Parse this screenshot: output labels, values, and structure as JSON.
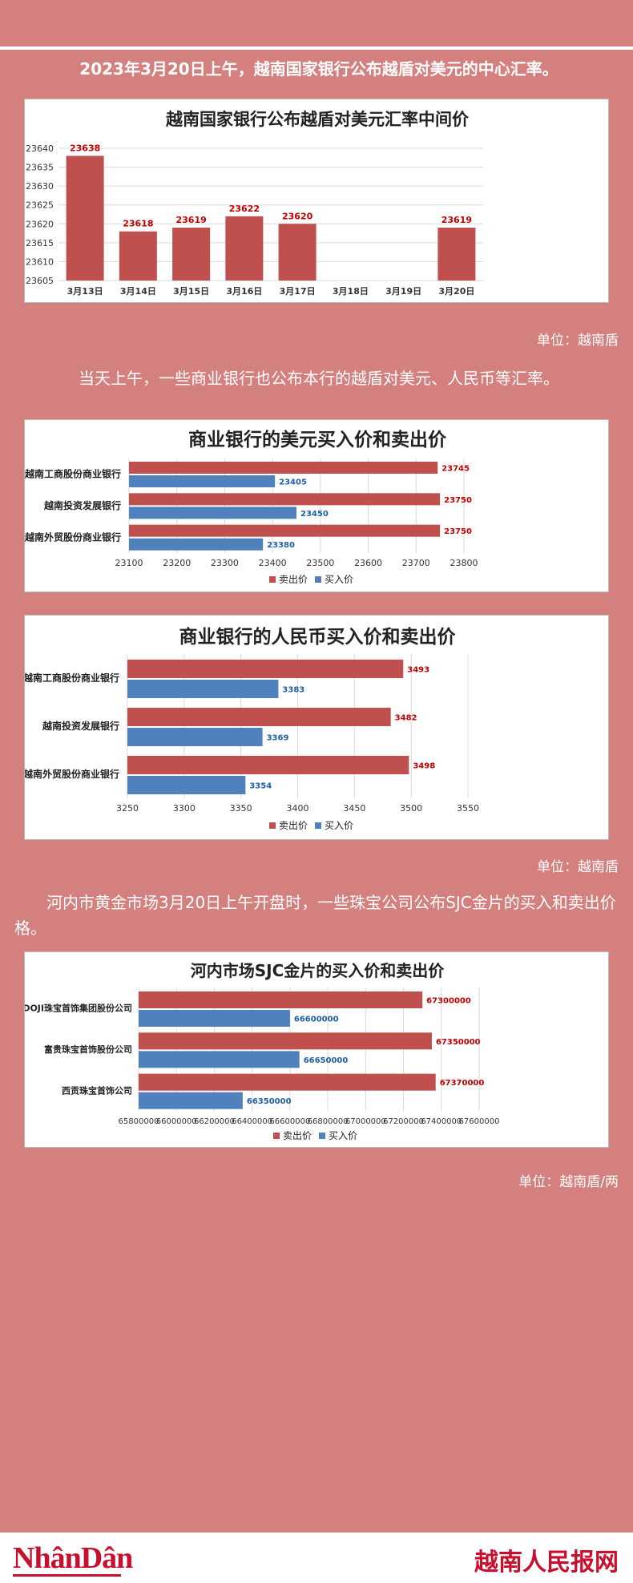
{
  "intro1": "2023年3月20日上午，越南国家银行公布越盾对美元的中心汇率。",
  "unit1": "单位：越南盾",
  "intro2": "当天上午，一些商业银行也公布本行的越盾对美元、人民币等汇率。",
  "unit2": "单位：越南盾",
  "intro3": "河内市黄金市场3月20日上午开盘时，一些珠宝公司公布SJC金片的买入和卖出价格。",
  "unit3": "单位：越南盾/两",
  "footer": {
    "logo": "NhânDân",
    "site": "越南人民报网"
  },
  "colors": {
    "sell": "#c0504d",
    "buy": "#4f81bd",
    "bg": "#d4807f"
  },
  "chart_data": [
    {
      "type": "bar",
      "title": "越南国家银行公布越盾对美元汇率中间价",
      "categories": [
        "3月13日",
        "3月14日",
        "3月15日",
        "3月16日",
        "3月17日",
        "3月18日",
        "3月19日",
        "3月20日"
      ],
      "values": [
        23638,
        23618,
        23619,
        23622,
        23620,
        null,
        null,
        23619
      ],
      "ylim": [
        23605,
        23640
      ],
      "yticks": [
        23605,
        23610,
        23615,
        23620,
        23625,
        23630,
        23635,
        23640
      ],
      "grid": true
    },
    {
      "type": "bar",
      "orientation": "horizontal",
      "title": "商业银行的美元买入价和卖出价",
      "categories": [
        "越南工商股份商业银行",
        "越南投资发展银行",
        "越南外贸股份商业银行"
      ],
      "series": [
        {
          "name": "卖出价",
          "values": [
            23745,
            23750,
            23750
          ]
        },
        {
          "name": "买入价",
          "values": [
            23405,
            23450,
            23380
          ]
        }
      ],
      "xlim": [
        23100,
        23800
      ],
      "xticks": [
        23100,
        23200,
        23300,
        23400,
        23500,
        23600,
        23700,
        23800
      ],
      "legend": "bottom",
      "grid": true
    },
    {
      "type": "bar",
      "orientation": "horizontal",
      "title": "商业银行的人民币买入价和卖出价",
      "categories": [
        "越南工商股份商业银行",
        "越南投资发展银行",
        "越南外贸股份商业银行"
      ],
      "series": [
        {
          "name": "卖出价",
          "values": [
            3493,
            3482,
            3498
          ]
        },
        {
          "name": "买入价",
          "values": [
            3383,
            3369,
            3354
          ]
        }
      ],
      "xlim": [
        3250,
        3550
      ],
      "xticks": [
        3250,
        3300,
        3350,
        3400,
        3450,
        3500,
        3550
      ],
      "legend": "bottom",
      "grid": true
    },
    {
      "type": "bar",
      "orientation": "horizontal",
      "title": "河内市场SJC金片的买入价和卖出价",
      "categories": [
        "DOJI珠宝首饰集团股份公司",
        "富贵珠宝首饰股份公司",
        "西贡珠宝首饰公司"
      ],
      "series": [
        {
          "name": "卖出价",
          "values": [
            67300000,
            67350000,
            67370000
          ]
        },
        {
          "name": "买入价",
          "values": [
            66600000,
            66650000,
            66350000
          ]
        }
      ],
      "xlim": [
        65800000,
        67600000
      ],
      "xticks": [
        65800000,
        66000000,
        66200000,
        66400000,
        66600000,
        66800000,
        67000000,
        67200000,
        67400000,
        67600000
      ],
      "legend": "bottom",
      "grid": true
    }
  ]
}
